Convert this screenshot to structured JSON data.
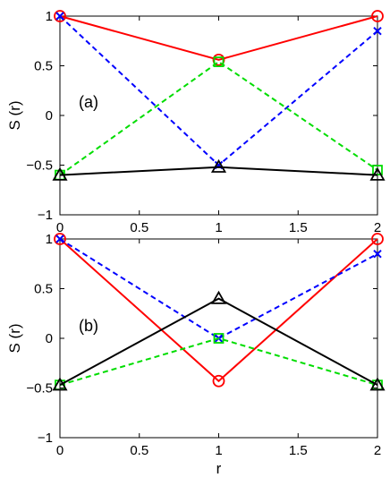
{
  "chart_data": [
    {
      "type": "line",
      "panel_label": "(a)",
      "ylabel": "S (r)",
      "xlabel": "",
      "xlim": [
        0,
        2
      ],
      "ylim": [
        -1,
        1
      ],
      "x_ticks": [
        {
          "v": 0,
          "label": "0"
        },
        {
          "v": 0.5,
          "label": "0.5"
        },
        {
          "v": 1,
          "label": "1"
        },
        {
          "v": 1.5,
          "label": "1.5"
        },
        {
          "v": 2,
          "label": "2"
        }
      ],
      "y_ticks": [
        {
          "v": -1,
          "label": "−1"
        },
        {
          "v": -0.5,
          "label": "−0.5"
        },
        {
          "v": 0,
          "label": "0"
        },
        {
          "v": 0.5,
          "label": "0.5"
        },
        {
          "v": 1,
          "label": "1"
        }
      ],
      "grid": false,
      "series": [
        {
          "x": [
            0,
            1,
            2
          ],
          "y": [
            1.0,
            0.56,
            1.0
          ],
          "color": "#ff0000",
          "dash": "solid",
          "marker": "circle"
        },
        {
          "x": [
            0,
            1,
            2
          ],
          "y": [
            1.0,
            -0.5,
            0.85
          ],
          "color": "#0000ff",
          "dash": "dashed",
          "marker": "x"
        },
        {
          "x": [
            0,
            1,
            2
          ],
          "y": [
            -0.6,
            0.54,
            -0.55
          ],
          "color": "#00dd00",
          "dash": "dashed",
          "marker": "square"
        },
        {
          "x": [
            0,
            1,
            2
          ],
          "y": [
            -0.6,
            -0.52,
            -0.6
          ],
          "color": "#000000",
          "dash": "solid",
          "marker": "triangle"
        }
      ]
    },
    {
      "type": "line",
      "panel_label": "(b)",
      "ylabel": "S (r)",
      "xlabel": "r",
      "xlim": [
        0,
        2
      ],
      "ylim": [
        -1,
        1
      ],
      "x_ticks": [
        {
          "v": 0,
          "label": "0"
        },
        {
          "v": 0.5,
          "label": "0.5"
        },
        {
          "v": 1,
          "label": "1"
        },
        {
          "v": 1.5,
          "label": "1.5"
        },
        {
          "v": 2,
          "label": "2"
        }
      ],
      "y_ticks": [
        {
          "v": -1,
          "label": "−1"
        },
        {
          "v": -0.5,
          "label": "−0.5"
        },
        {
          "v": 0,
          "label": "0"
        },
        {
          "v": 0.5,
          "label": "0.5"
        },
        {
          "v": 1,
          "label": "1"
        }
      ],
      "grid": false,
      "series": [
        {
          "x": [
            0,
            1,
            2
          ],
          "y": [
            1.0,
            -0.43,
            1.0
          ],
          "color": "#ff0000",
          "dash": "solid",
          "marker": "circle"
        },
        {
          "x": [
            0,
            1,
            2
          ],
          "y": [
            1.0,
            0.0,
            0.85
          ],
          "color": "#0000ff",
          "dash": "dashed",
          "marker": "x"
        },
        {
          "x": [
            0,
            1,
            2
          ],
          "y": [
            -0.47,
            0.0,
            -0.47
          ],
          "color": "#00dd00",
          "dash": "dashed",
          "marker": "square"
        },
        {
          "x": [
            0,
            1,
            2
          ],
          "y": [
            -0.47,
            0.4,
            -0.47
          ],
          "color": "#000000",
          "dash": "solid",
          "marker": "triangle"
        }
      ]
    }
  ]
}
